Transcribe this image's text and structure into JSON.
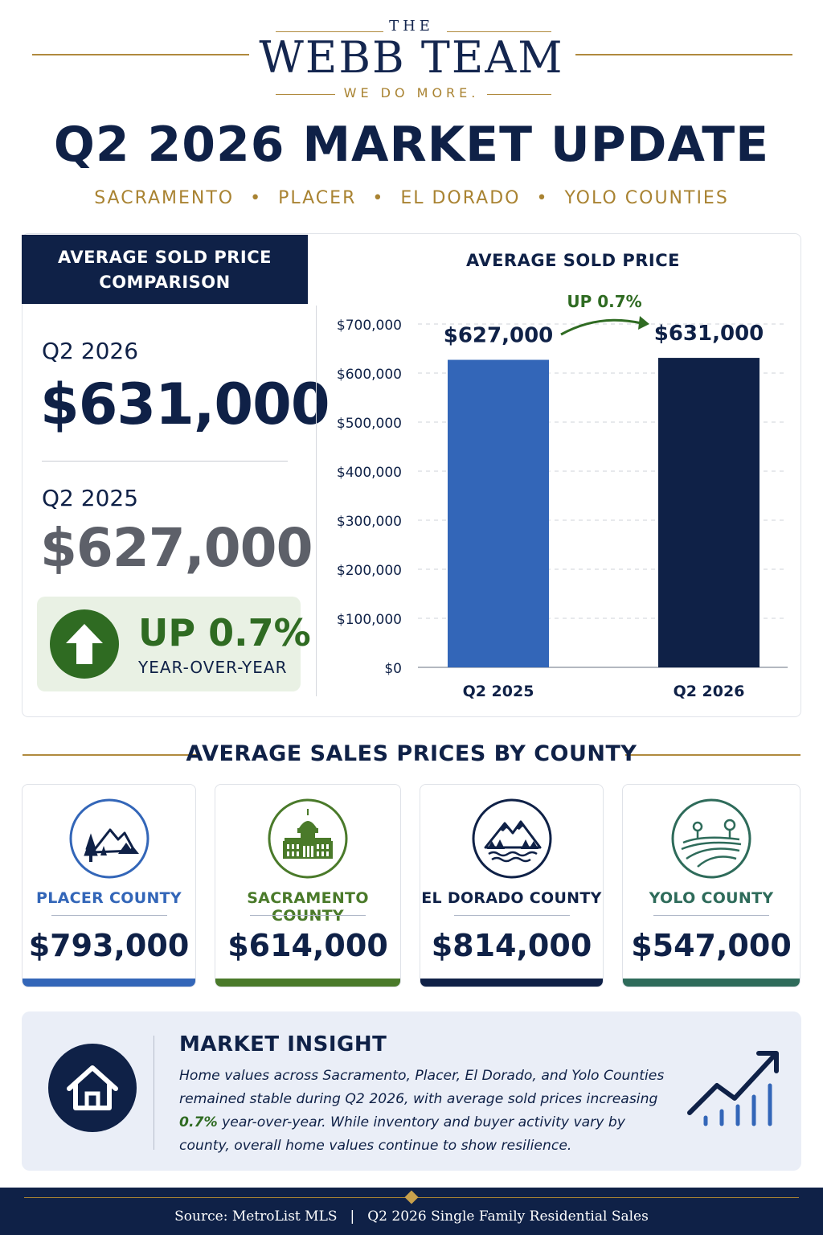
{
  "brand": {
    "the": "THE",
    "name": "WEBB TEAM",
    "tagline": "WE DO MORE."
  },
  "title": "Q2 2026 MARKET UPDATE",
  "counties_line": [
    "SACRAMENTO",
    "PLACER",
    "EL DORADO",
    "YOLO COUNTIES"
  ],
  "comparison": {
    "header_line1": "AVERAGE SOLD PRICE",
    "header_line2": "COMPARISON",
    "current_label": "Q2 2026",
    "current_value": "$631,000",
    "prior_label": "Q2 2025",
    "prior_value": "$627,000",
    "change": "UP 0.7%",
    "change_period": "YEAR-OVER-YEAR",
    "change_icon": "up-arrow-icon"
  },
  "chart_data": {
    "type": "bar",
    "title": "AVERAGE SOLD PRICE",
    "categories": [
      "Q2 2025",
      "Q2 2026"
    ],
    "values": [
      627000,
      631000
    ],
    "data_labels": [
      "$627,000",
      "$631,000"
    ],
    "annotation": "UP 0.7%",
    "bar_colors": [
      "#3366b8",
      "#0f2147"
    ],
    "ylim": [
      0,
      700000
    ],
    "yticks": [
      "$0",
      "$100,000",
      "$200,000",
      "$300,000",
      "$400,000",
      "$500,000",
      "$600,000",
      "$700,000"
    ],
    "grid": true,
    "legend": "none"
  },
  "section_title": "AVERAGE SALES PRICES BY COUNTY",
  "county_cards": [
    {
      "name": "PLACER COUNTY",
      "price": "$793,000",
      "icon": "mountain-trees-icon",
      "color": "#3366b8"
    },
    {
      "name": "SACRAMENTO COUNTY",
      "price": "$614,000",
      "icon": "capitol-building-icon",
      "color": "#4a7a2a"
    },
    {
      "name": "EL DORADO COUNTY",
      "price": "$814,000",
      "icon": "mountain-lake-icon",
      "color": "#0f2147"
    },
    {
      "name": "YOLO COUNTY",
      "price": "$547,000",
      "icon": "farm-field-icon",
      "color": "#2e6b5a"
    }
  ],
  "insight": {
    "title": "MARKET INSIGHT",
    "text_before": "Home values across Sacramento, Placer, El Dorado, and Yolo Counties remained stable during Q2 2026, with average sold prices increasing ",
    "highlight": "0.7%",
    "text_after": " year-over-year. While inventory and buyer activity vary by county, overall home values continue to show resilience.",
    "left_icon": "house-icon",
    "right_icon": "growth-chart-icon"
  },
  "footer": {
    "source": "Source: MetroList MLS",
    "separator": "|",
    "note": "Q2 2026 Single Family Residential Sales"
  },
  "colors": {
    "navy": "#0f2147",
    "gold": "#a98332",
    "green": "#2f6b22",
    "blue": "#3366b8"
  }
}
